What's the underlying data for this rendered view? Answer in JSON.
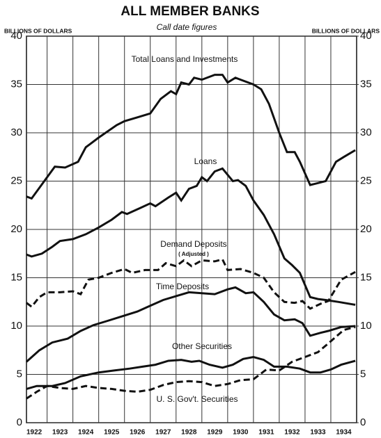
{
  "chart_data": {
    "type": "line",
    "title": "ALL MEMBER BANKS",
    "subtitle": "Call date figures",
    "ylabel": "BILLIONS OF DOLLARS",
    "y2label": "BILLIONS OF DOLLARS",
    "xlim": [
      1922.2,
      1935.0
    ],
    "xticks": [
      1922,
      1923,
      1924,
      1925,
      1926,
      1927,
      1928,
      1929,
      1930,
      1931,
      1932,
      1933,
      1934
    ],
    "ylim": [
      0,
      40
    ],
    "yticks": [
      0,
      5,
      10,
      15,
      20,
      25,
      30,
      35,
      40
    ],
    "y2lim": [
      0,
      40
    ],
    "y2ticks": [
      0,
      5,
      10,
      15,
      20,
      25,
      30,
      35,
      40
    ],
    "grid": true,
    "series": [
      {
        "name": "Total Loans and Investments",
        "color": "#111111",
        "dash": false,
        "x": [
          1922.2,
          1922.4,
          1923.3,
          1923.7,
          1924.2,
          1924.5,
          1925,
          1925.7,
          1926,
          1926.5,
          1927,
          1927.4,
          1927.8,
          1928,
          1928.2,
          1928.5,
          1928.7,
          1929,
          1929.5,
          1929.8,
          1930,
          1930.3,
          1930.5,
          1931,
          1931.3,
          1931.6,
          1932,
          1932.3,
          1932.6,
          1932.8,
          1933.2,
          1933.5,
          1933.8,
          1934.2,
          1934.5,
          1934.95
        ],
        "values": [
          23.4,
          23.2,
          26.5,
          26.4,
          27,
          28.5,
          29.5,
          30.8,
          31.2,
          31.6,
          32,
          33.5,
          34.3,
          34,
          35.2,
          35,
          35.7,
          35.5,
          36,
          36,
          35.2,
          35.7,
          35.5,
          35,
          34.5,
          33,
          30,
          28,
          28,
          27,
          24.6,
          24.8,
          25,
          27,
          27.5,
          28.2
        ]
      },
      {
        "name": "Loans",
        "color": "#111111",
        "dash": false,
        "x": [
          1922.2,
          1922.4,
          1922.8,
          1923.2,
          1923.5,
          1924,
          1924.5,
          1925,
          1925.5,
          1925.9,
          1926.1,
          1926.6,
          1927,
          1927.2,
          1927.7,
          1928,
          1928.2,
          1928.5,
          1928.8,
          1929,
          1929.2,
          1929.5,
          1929.8,
          1930.2,
          1930.4,
          1930.7,
          1931,
          1931.4,
          1931.8,
          1932.2,
          1932.5,
          1932.8,
          1933.2,
          1933.5,
          1933.8,
          1934.3,
          1934.95
        ],
        "values": [
          17.4,
          17.2,
          17.5,
          18.2,
          18.8,
          19,
          19.5,
          20.2,
          21,
          21.8,
          21.6,
          22.2,
          22.7,
          22.4,
          23.3,
          23.8,
          23,
          24.2,
          24.5,
          25.4,
          25,
          26,
          26.3,
          25,
          25.1,
          24.5,
          23,
          21.5,
          19.5,
          17,
          16.3,
          15.5,
          13,
          12.8,
          12.7,
          12.5,
          12.2
        ]
      },
      {
        "name": "Demand Deposits",
        "note": "( Adjusted )",
        "color": "#111111",
        "dash": true,
        "x": [
          1922.2,
          1922.4,
          1922.7,
          1923,
          1923.5,
          1924,
          1924.3,
          1924.6,
          1925,
          1925.5,
          1926,
          1926.3,
          1926.8,
          1927.3,
          1927.6,
          1928,
          1928.3,
          1928.6,
          1929,
          1929.5,
          1929.8,
          1930,
          1930.5,
          1931,
          1931.4,
          1931.8,
          1932.2,
          1932.6,
          1932.9,
          1933.2,
          1933.6,
          1933.9,
          1934.4,
          1934.95
        ],
        "values": [
          12.4,
          12,
          13,
          13.5,
          13.5,
          13.6,
          13.3,
          14.8,
          15,
          15.5,
          15.9,
          15.5,
          15.8,
          15.8,
          16.5,
          16.2,
          16.8,
          16.2,
          16.8,
          16.7,
          16.9,
          15.8,
          15.9,
          15.5,
          15,
          13.5,
          12.5,
          12.4,
          12.6,
          11.8,
          12.3,
          12.6,
          14.8,
          15.6
        ]
      },
      {
        "name": "Time Deposits",
        "color": "#111111",
        "dash": false,
        "x": [
          1922.2,
          1922.7,
          1923.2,
          1923.8,
          1924.3,
          1924.8,
          1925.3,
          1925.9,
          1926.5,
          1927,
          1927.5,
          1928,
          1928.5,
          1929,
          1929.5,
          1930,
          1930.3,
          1930.7,
          1931,
          1931.4,
          1931.8,
          1932.2,
          1932.6,
          1932.9,
          1933.2,
          1933.6,
          1933.9,
          1934.4,
          1934.95
        ],
        "values": [
          6.3,
          7.5,
          8.3,
          8.7,
          9.5,
          10.1,
          10.5,
          11,
          11.5,
          12.1,
          12.7,
          13.1,
          13.5,
          13.4,
          13.3,
          13.8,
          14,
          13.4,
          13.5,
          12.5,
          11.2,
          10.6,
          10.7,
          10.3,
          9,
          9.3,
          9.5,
          9.9,
          10
        ]
      },
      {
        "name": "Other Securities",
        "color": "#111111",
        "dash": false,
        "x": [
          1922.2,
          1922.6,
          1923.2,
          1923.7,
          1924.3,
          1925,
          1925.6,
          1926.2,
          1926.7,
          1927.2,
          1927.7,
          1928.2,
          1928.6,
          1928.9,
          1929.3,
          1929.8,
          1930.2,
          1930.6,
          1931,
          1931.4,
          1931.8,
          1932.3,
          1932.8,
          1933.2,
          1933.6,
          1934,
          1934.4,
          1934.95
        ],
        "values": [
          3.5,
          3.8,
          3.8,
          4.1,
          4.8,
          5.2,
          5.4,
          5.6,
          5.8,
          6,
          6.4,
          6.5,
          6.3,
          6.4,
          6,
          5.7,
          6,
          6.6,
          6.8,
          6.5,
          5.8,
          5.8,
          5.6,
          5.2,
          5.2,
          5.5,
          6,
          6.4
        ]
      },
      {
        "name": "U. S. Gov't. Securities",
        "color": "#111111",
        "dash": true,
        "x": [
          1922.2,
          1922.6,
          1923,
          1923.5,
          1924,
          1924.5,
          1925,
          1925.5,
          1926,
          1926.5,
          1927,
          1927.5,
          1928,
          1928.5,
          1929,
          1929.5,
          1930,
          1930.5,
          1931,
          1931.5,
          1932,
          1932.5,
          1933,
          1933.5,
          1933.9,
          1934.5,
          1934.95
        ],
        "values": [
          2.5,
          3.2,
          3.8,
          3.6,
          3.5,
          3.8,
          3.6,
          3.5,
          3.3,
          3.2,
          3.4,
          3.9,
          4.2,
          4.3,
          4.2,
          3.8,
          4,
          4.4,
          4.5,
          5.5,
          5.4,
          6.3,
          6.8,
          7.3,
          8.2,
          9.6,
          9.9
        ]
      }
    ]
  }
}
